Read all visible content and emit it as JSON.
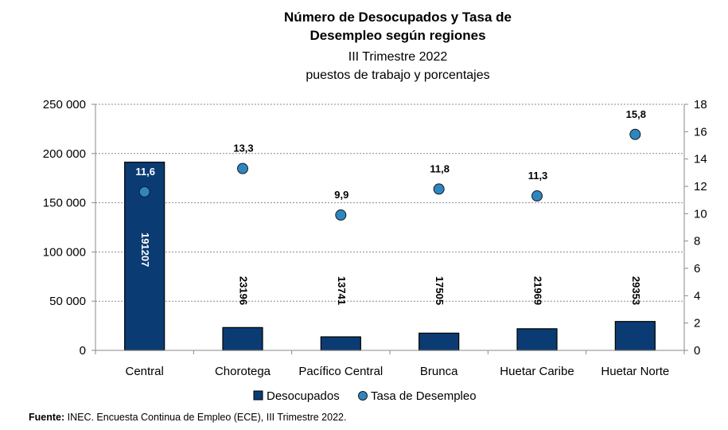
{
  "chart_data": {
    "type": "bar",
    "title_lines": [
      "Número de Desocupados y Tasa de",
      "Desempleo según regiones"
    ],
    "subtitle_lines": [
      "III Trimestre 2022",
      "puestos de trabajo y porcentajes"
    ],
    "categories": [
      "Central",
      "Chorotega",
      "Pacífico Central",
      "Brunca",
      "Huetar Caribe",
      "Huetar Norte"
    ],
    "series": [
      {
        "name": "Desocupados",
        "type": "bar",
        "axis": "left",
        "values": [
          191207,
          23196,
          13741,
          17505,
          21969,
          29353
        ],
        "labels": [
          "191207",
          "23196",
          "13741",
          "17505",
          "21969",
          "29353"
        ],
        "color": "#0b3b73"
      },
      {
        "name": "Tasa de Desempleo",
        "type": "scatter",
        "axis": "right",
        "values": [
          11.6,
          13.3,
          9.9,
          11.8,
          11.3,
          15.8
        ],
        "labels": [
          "11,6",
          "13,3",
          "9,9",
          "11,8",
          "11,3",
          "15,8"
        ],
        "color": "#2e86c1"
      }
    ],
    "y_left": {
      "min": 0,
      "max": 250000,
      "step": 50000,
      "tick_labels": [
        "0",
        "50 000",
        "100 000",
        "150 000",
        "200 000",
        "250 000"
      ]
    },
    "y_right": {
      "min": 0,
      "max": 18,
      "step": 2,
      "tick_labels": [
        "0",
        "2",
        "4",
        "6",
        "8",
        "10",
        "12",
        "14",
        "16",
        "18"
      ]
    },
    "grid": true,
    "legend_position": "bottom"
  },
  "source": {
    "label": "Fuente:",
    "text": " INEC. Encuesta Continua de Empleo (ECE), III Trimestre 2022."
  }
}
